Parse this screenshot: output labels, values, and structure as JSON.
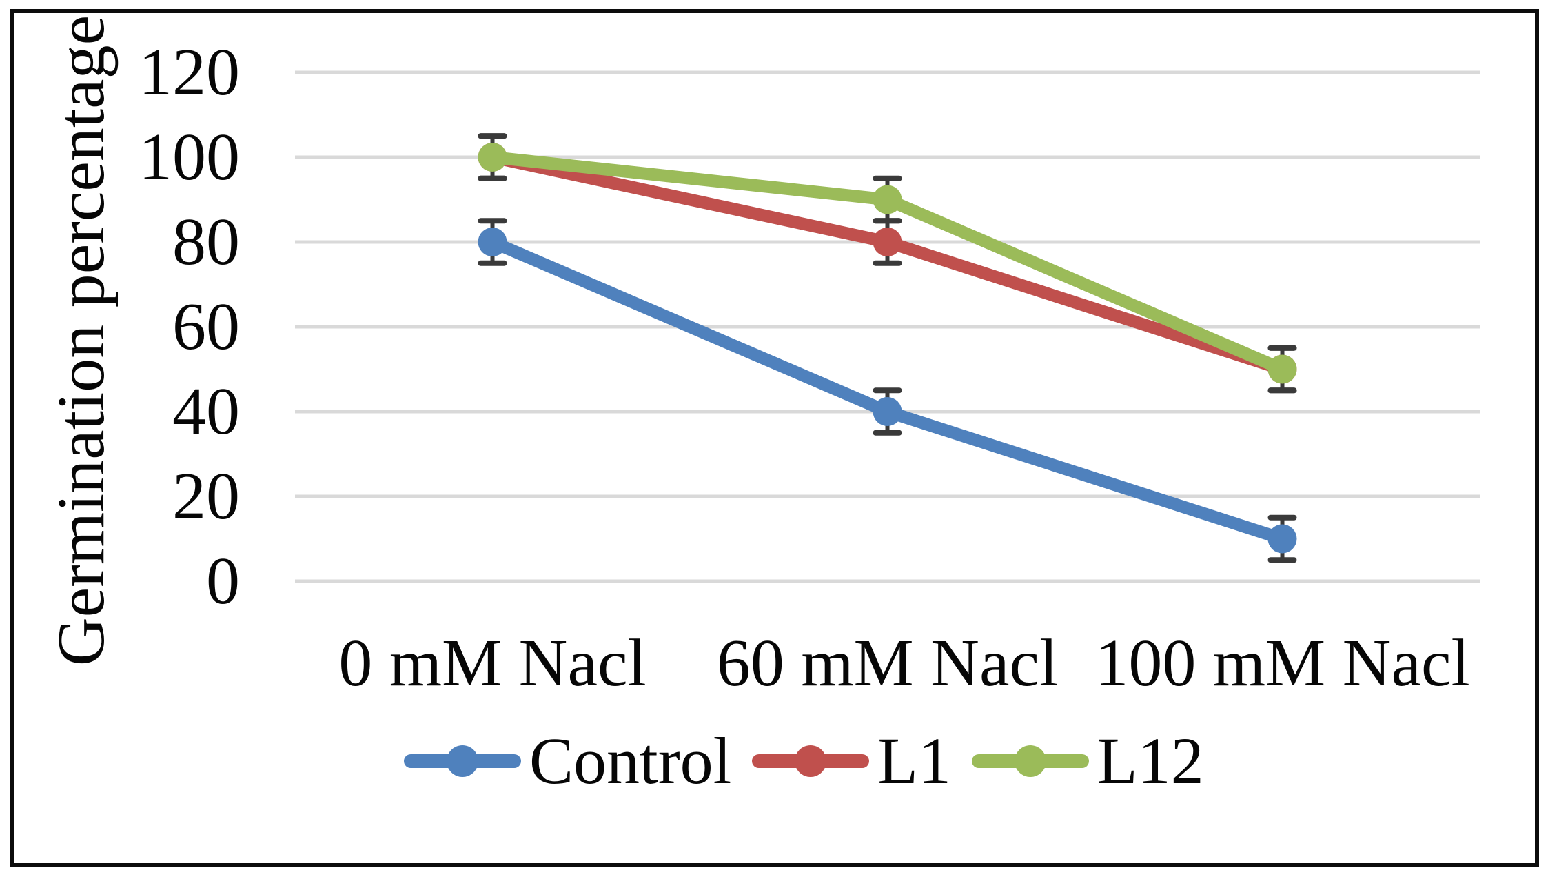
{
  "figure": {
    "background": "#ffffff",
    "border_color": "#0c0c0c"
  },
  "chart_data": {
    "type": "line",
    "title": "",
    "ylabel": "Germination percentage",
    "xlabel": "",
    "categories": [
      "0 mM Nacl",
      "60 mM Nacl",
      "100 mM Nacl"
    ],
    "series": [
      {
        "name": "Control",
        "color": "#4F81BD",
        "values": [
          80,
          40,
          10
        ],
        "error": 5
      },
      {
        "name": "L1",
        "color": "#C0504D",
        "values": [
          100,
          80,
          50
        ],
        "error": 5
      },
      {
        "name": "L12",
        "color": "#9BBB59",
        "values": [
          100,
          90,
          50
        ],
        "error": 5
      }
    ],
    "ylim": [
      0,
      120
    ],
    "yticks": [
      0,
      20,
      40,
      60,
      80,
      100,
      120
    ],
    "grid": true,
    "gridline_color": "#D9D9D9",
    "error_bar_color": "#3A3A3A",
    "marker": "circle",
    "legend_position": "bottom"
  }
}
